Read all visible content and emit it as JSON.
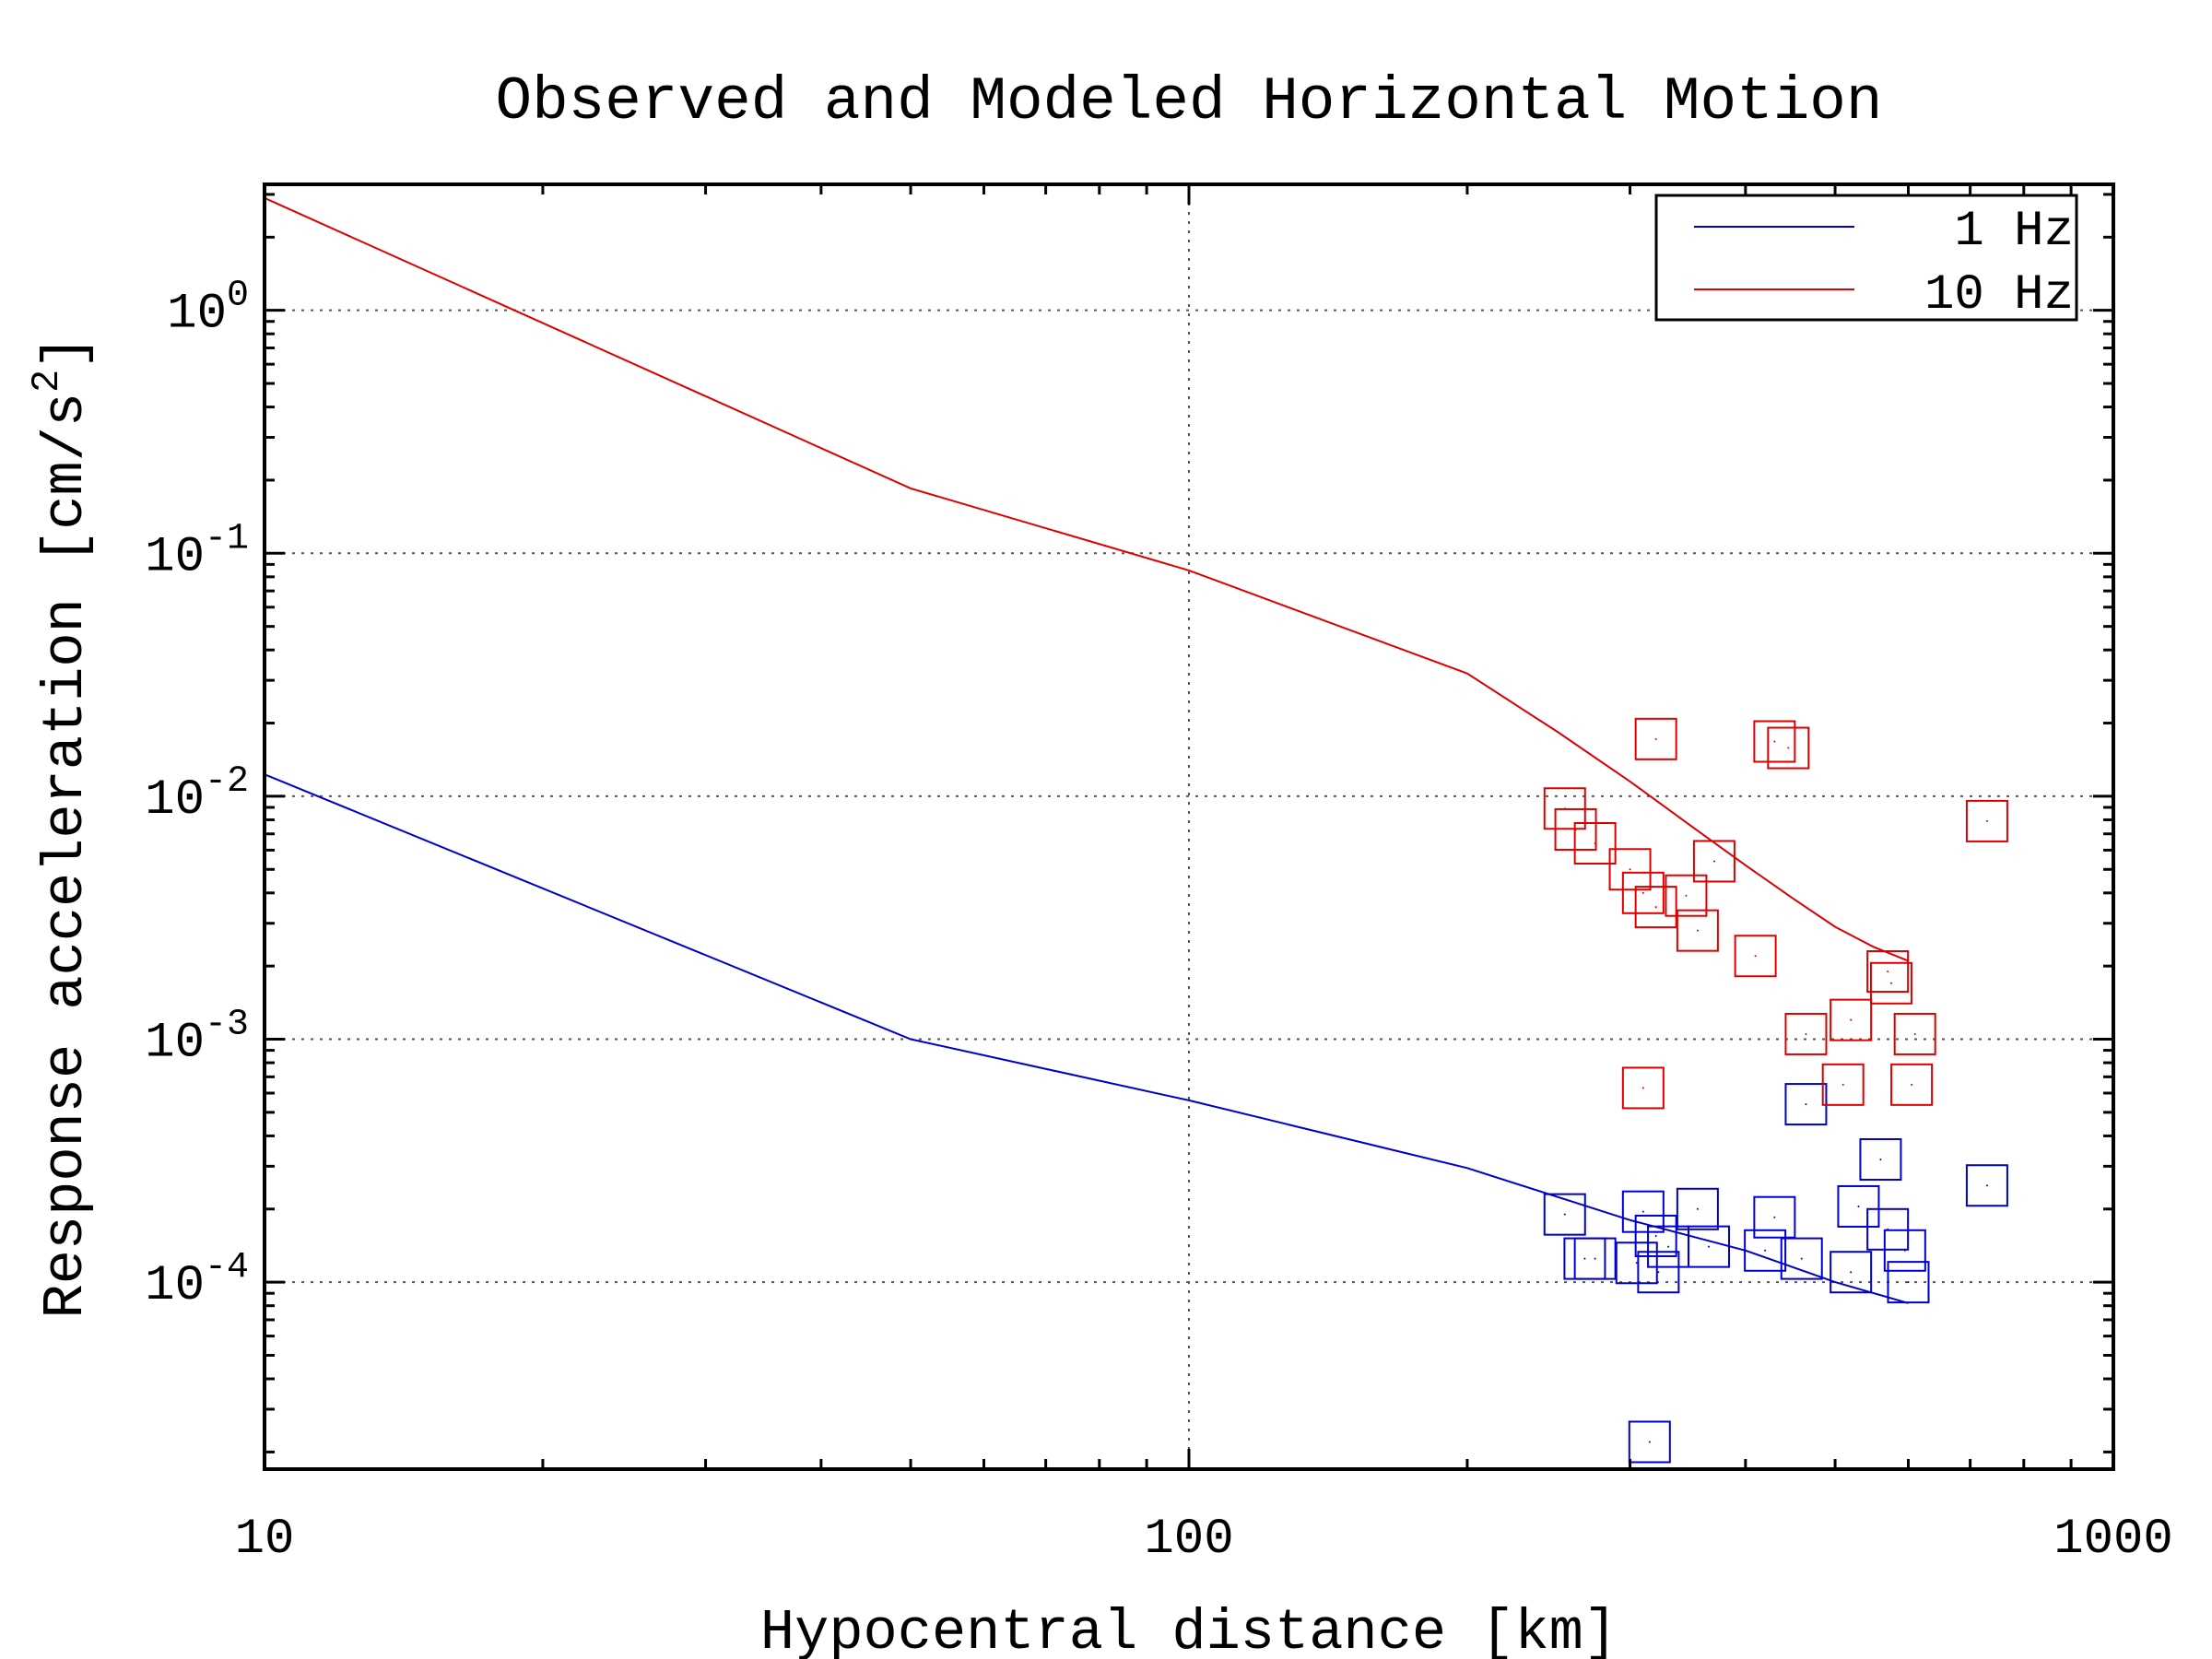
{
  "chart_data": {
    "type": "scatter",
    "title": "Observed and Modeled Horizontal Motion",
    "xlabel": "Hypocentral distance [km]",
    "ylabel": "Response acceleration [cm/s",
    "ylabel_sup": "2",
    "ylabel_end": "]",
    "xscale": "log",
    "yscale": "log",
    "xlim": [
      10,
      1000
    ],
    "ylim": [
      1.7e-05,
      3.3
    ],
    "x_ticks": [
      {
        "value": 10,
        "label": "10"
      },
      {
        "value": 100,
        "label": "100"
      },
      {
        "value": 1000,
        "label": "1000"
      }
    ],
    "y_ticks": [
      {
        "value": 0.0001,
        "base": "10",
        "exp": "-4"
      },
      {
        "value": 0.001,
        "base": "10",
        "exp": "-3"
      },
      {
        "value": 0.01,
        "base": "10",
        "exp": "-2"
      },
      {
        "value": 0.1,
        "base": "10",
        "exp": "-1"
      },
      {
        "value": 1,
        "base": "10",
        "exp": "0"
      }
    ],
    "grid": true,
    "legend_position": "top-right",
    "colors": {
      "1Hz": "#0000cc",
      "10Hz": "#dd0000"
    },
    "series": [
      {
        "name": "1 Hz",
        "kind": "line",
        "color": "#0000cc",
        "x": [
          10,
          50,
          100,
          200,
          300,
          400,
          500,
          600
        ],
        "y": [
          0.0123,
          0.001,
          0.00056,
          0.000295,
          0.00018,
          0.000135,
          0.0001,
          8.2e-05
        ]
      },
      {
        "name": "10 Hz",
        "kind": "line",
        "color": "#dd0000",
        "x": [
          10,
          50,
          100,
          200,
          250,
          300,
          350,
          400,
          450,
          500,
          550,
          600
        ],
        "y": [
          2.9,
          0.185,
          0.085,
          0.032,
          0.0185,
          0.0115,
          0.0075,
          0.0052,
          0.0038,
          0.0029,
          0.0024,
          0.0021
        ]
      },
      {
        "name": "",
        "kind": "markers",
        "color": "#0000cc",
        "x": [
          255,
          268,
          275,
          305,
          310,
          320,
          330,
          355,
          365,
          420,
          430,
          460,
          465,
          520,
          530,
          560,
          570,
          595,
          600,
          730,
          322,
          315
        ],
        "y": [
          0.00019,
          0.000125,
          0.000125,
          0.00012,
          0.000195,
          0.000155,
          0.00014,
          0.0002,
          0.00014,
          0.000135,
          0.000185,
          0.000125,
          0.00054,
          0.00011,
          0.000205,
          0.00032,
          0.000165,
          0.000135,
          0.0001,
          0.00025,
          0.00011,
          2.2e-05
        ]
      },
      {
        "name": "",
        "kind": "markers",
        "color": "#dd0000",
        "x": [
          255,
          262,
          275,
          320,
          300,
          310,
          320,
          345,
          355,
          370,
          410,
          430,
          445,
          465,
          510,
          520,
          570,
          575,
          605,
          610,
          730,
          310
        ],
        "y": [
          0.0089,
          0.0073,
          0.0064,
          0.0172,
          0.005,
          0.004,
          0.0035,
          0.0039,
          0.0028,
          0.0054,
          0.0022,
          0.0168,
          0.0158,
          0.00105,
          0.00065,
          0.0012,
          0.0019,
          0.0017,
          0.00065,
          0.00105,
          0.0079,
          0.00063
        ]
      }
    ]
  }
}
